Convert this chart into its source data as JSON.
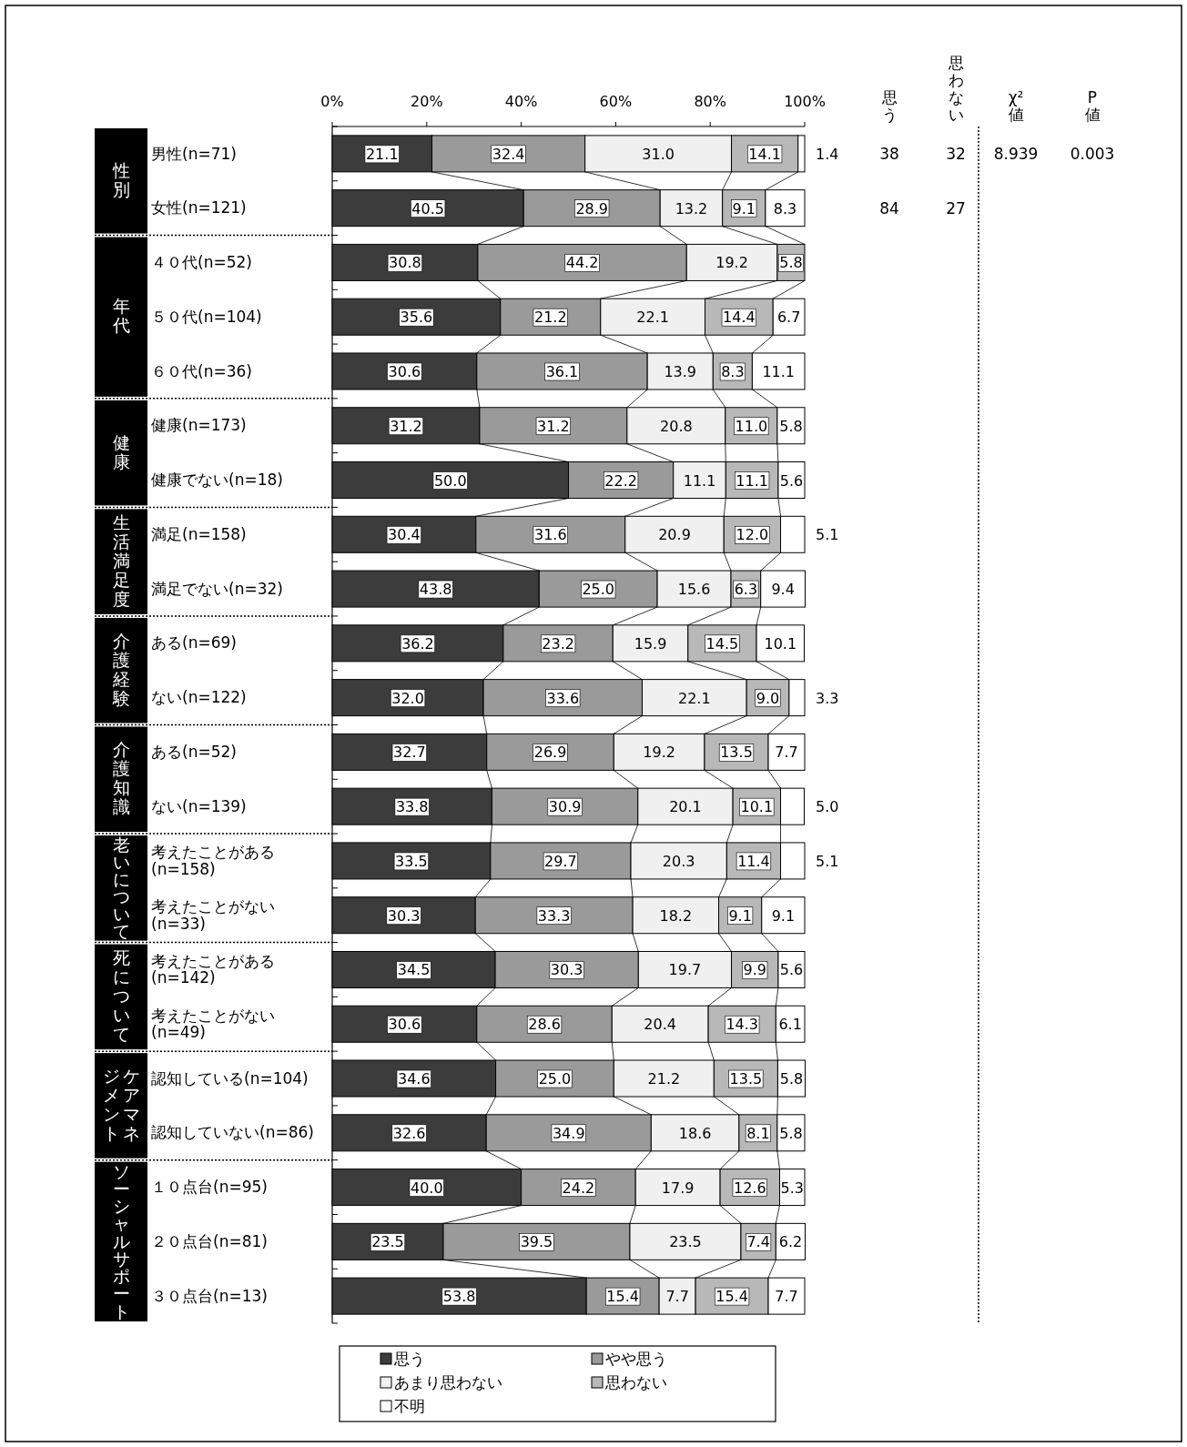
{
  "chart_data": [
    {
      "type": "bar",
      "orientation": "horizontal",
      "stacked": true,
      "categories": [
        "男性(n=71)",
        "女性(n=121)",
        "４０代(n=52)",
        "５０代(n=104)",
        "６０代(n=36)",
        "健康(n=173)",
        "健康でない(n=18)",
        "満足(n=158)",
        "満足でない(n=32)",
        "ある(n=69)",
        "ない(n=122)",
        "ある(n=52)",
        "ない(n=139)",
        "考えたことがある(n=158)",
        "考えたことがない(n=33)",
        "考えたことがある(n=142)",
        "考えたことがない(n=49)",
        "認知している(n=104)",
        "認知していない(n=86)",
        "１０点台(n=95)",
        "２０点台(n=81)",
        "３０点台(n=13)"
      ],
      "series": [
        {
          "name": "思う",
          "color": "#3c3c3c",
          "values": [
            21.1,
            40.5,
            30.8,
            35.6,
            30.6,
            31.2,
            50.0,
            30.4,
            43.8,
            36.2,
            32.0,
            32.7,
            33.8,
            33.5,
            30.3,
            34.5,
            30.6,
            34.6,
            32.6,
            40.0,
            23.5,
            53.8
          ],
          "value_labels": [
            "21.1",
            "40.5",
            "30.8",
            "35.6",
            "30.6",
            "31.2",
            "50.0",
            "30.4",
            "43.8",
            "36.2",
            "32.0",
            "32.7",
            "33.8",
            "33.5",
            "30.3",
            "34.5",
            "30.6",
            "34.6",
            "32.6",
            "40.0",
            "23.5",
            "53.8"
          ]
        },
        {
          "name": "やや思う",
          "color": "#9a9a9a",
          "values": [
            32.4,
            28.9,
            44.2,
            21.2,
            36.1,
            31.2,
            22.2,
            31.6,
            25.0,
            23.2,
            33.6,
            26.9,
            30.9,
            29.7,
            33.3,
            30.3,
            28.6,
            25.0,
            34.9,
            24.2,
            39.5,
            15.4
          ],
          "value_labels": [
            "32.4",
            "28.9",
            "44.2",
            "21.2",
            "36.1",
            "31.2",
            "22.2",
            "31.6",
            "25.0",
            "23.2",
            "33.6",
            "26.9",
            "30.9",
            "29.7",
            "33.3",
            "30.3",
            "28.6",
            "25.0",
            "34.9",
            "24.2",
            "39.5",
            "15.4"
          ]
        },
        {
          "name": "あまり思わない",
          "color": "#f0f0f0",
          "values": [
            31.0,
            13.2,
            19.2,
            22.1,
            13.9,
            20.8,
            11.1,
            20.9,
            15.6,
            15.9,
            22.1,
            19.2,
            20.1,
            20.3,
            18.2,
            19.7,
            20.4,
            21.2,
            18.6,
            17.9,
            23.5,
            7.7
          ],
          "value_labels": [
            "31.0",
            "13.2",
            "19.2",
            "22.1",
            "13.9",
            "20.8",
            "11.1",
            "20.9",
            "15.6",
            "15.9",
            "22.1",
            "19.2",
            "20.1",
            "20.3",
            "18.2",
            "19.7",
            "20.4",
            "21.2",
            "18.6",
            "17.9",
            "23.5",
            "7.7"
          ]
        },
        {
          "name": "思わない",
          "color": "#b8b8b8",
          "values": [
            14.1,
            9.1,
            5.8,
            14.4,
            8.3,
            11.0,
            11.1,
            12.0,
            6.3,
            14.5,
            9.0,
            13.5,
            10.1,
            11.4,
            9.1,
            9.9,
            14.3,
            13.5,
            8.1,
            12.6,
            7.4,
            15.4
          ],
          "value_labels": [
            "14.1",
            "9.1",
            "5.8",
            "14.4",
            "8.3",
            "11.0",
            "11.1",
            "12.0",
            "6.3",
            "14.5",
            "9.0",
            "13.5",
            "10.1",
            "11.4",
            "9.1",
            "9.9",
            "14.3",
            "13.5",
            "8.1",
            "12.6",
            "7.4",
            "15.4"
          ]
        },
        {
          "name": "不明",
          "color": "#ffffff",
          "values": [
            1.4,
            8.3,
            null,
            6.7,
            11.1,
            5.8,
            5.6,
            5.1,
            9.4,
            10.1,
            3.3,
            7.7,
            5.0,
            5.1,
            9.1,
            5.6,
            6.1,
            5.8,
            5.8,
            5.3,
            6.2,
            7.7
          ],
          "value_labels": [
            "1.4",
            "8.3",
            null,
            "6.7",
            "11.1",
            "5.8",
            "5.6",
            "5.1",
            "9.4",
            "10.1",
            "3.3",
            "7.7",
            "5.0",
            "5.1",
            "9.1",
            "5.6",
            "6.1",
            "5.8",
            "5.8",
            "5.3",
            "6.2",
            "7.7"
          ]
        }
      ],
      "xlim": [
        0,
        100
      ],
      "xticks": [
        {
          "value": 0,
          "label": "0%"
        },
        {
          "value": 20,
          "label": "20%"
        },
        {
          "value": 40,
          "label": "40%"
        },
        {
          "value": 60,
          "label": "60%"
        },
        {
          "value": 80,
          "label": "80%"
        },
        {
          "value": 100,
          "label": "100%"
        }
      ],
      "legend": "bottom",
      "annotations": [
        "性別",
        "年代",
        "健康",
        "生活満足度",
        "介護経験",
        "介護知識",
        "老いについて",
        "死について",
        "ケアマネジメント",
        "ソーシャルサポート"
      ]
    },
    {
      "type": "other",
      "data_labels": true,
      "categories": [
        "思う",
        "思わない",
        "χ²値",
        "P値"
      ],
      "series": [
        {
          "values": [
            38,
            32,
            8.939,
            0.003
          ]
        },
        {
          "values": [
            84,
            27,
            null,
            null
          ]
        }
      ]
    }
  ]
}
